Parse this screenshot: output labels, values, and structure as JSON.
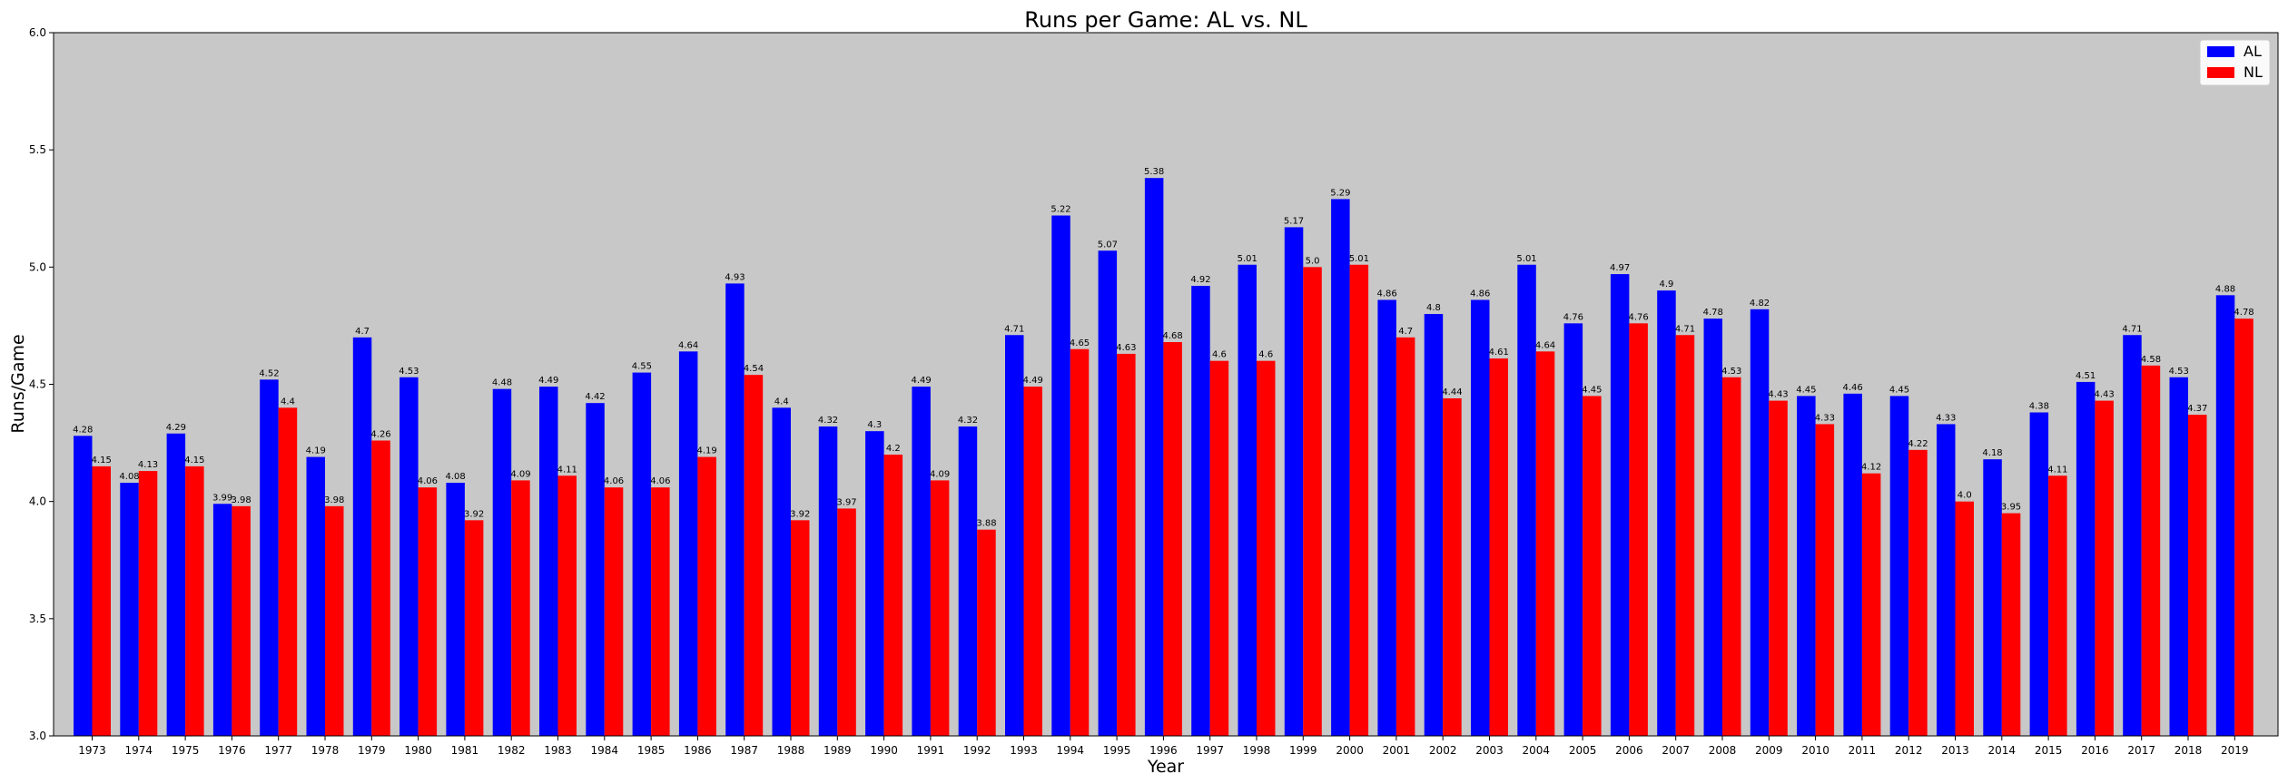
{
  "chart_data": {
    "type": "bar",
    "title": "Runs per Game: AL vs. NL",
    "xlabel": "Year",
    "ylabel": "Runs/Game",
    "ylim": [
      3.0,
      6.0
    ],
    "yticks": [
      "3.0",
      "3.5",
      "4.0",
      "4.5",
      "5.0",
      "5.5",
      "6.0"
    ],
    "grid": false,
    "legend_position": "top-right",
    "background_color": "#c8c8c8",
    "categories": [
      "1973",
      "1974",
      "1975",
      "1976",
      "1977",
      "1978",
      "1979",
      "1980",
      "1981",
      "1982",
      "1983",
      "1984",
      "1985",
      "1986",
      "1987",
      "1988",
      "1989",
      "1990",
      "1991",
      "1992",
      "1993",
      "1994",
      "1995",
      "1996",
      "1997",
      "1998",
      "1999",
      "2000",
      "2001",
      "2002",
      "2003",
      "2004",
      "2005",
      "2006",
      "2007",
      "2008",
      "2009",
      "2010",
      "2011",
      "2012",
      "2013",
      "2014",
      "2015",
      "2016",
      "2017",
      "2018",
      "2019"
    ],
    "series": [
      {
        "name": "AL",
        "color": "#0000ff",
        "values": [
          4.28,
          4.08,
          4.29,
          3.99,
          4.52,
          4.19,
          4.7,
          4.53,
          4.08,
          4.48,
          4.49,
          4.42,
          4.55,
          4.64,
          4.93,
          4.4,
          4.32,
          4.3,
          4.49,
          4.32,
          4.71,
          5.22,
          5.07,
          5.38,
          4.92,
          5.01,
          5.17,
          5.29,
          4.86,
          4.8,
          4.86,
          5.01,
          4.76,
          4.97,
          4.9,
          4.78,
          4.82,
          4.45,
          4.46,
          4.45,
          4.33,
          4.18,
          4.38,
          4.51,
          4.71,
          4.53,
          4.88
        ],
        "labels": [
          "4.28",
          "4.08",
          "4.29",
          "3.99",
          "4.52",
          "4.19",
          "4.7",
          "4.53",
          "4.08",
          "4.48",
          "4.49",
          "4.42",
          "4.55",
          "4.64",
          "4.93",
          "4.4",
          "4.32",
          "4.3",
          "4.49",
          "4.32",
          "4.71",
          "5.22",
          "5.07",
          "5.38",
          "4.92",
          "5.01",
          "5.17",
          "5.29",
          "4.86",
          "4.8",
          "4.86",
          "5.01",
          "4.76",
          "4.97",
          "4.9",
          "4.78",
          "4.82",
          "4.45",
          "4.46",
          "4.45",
          "4.33",
          "4.18",
          "4.38",
          "4.51",
          "4.71",
          "4.53",
          "4.88"
        ]
      },
      {
        "name": "NL",
        "color": "#ff0000",
        "values": [
          4.15,
          4.13,
          4.15,
          3.98,
          4.4,
          3.98,
          4.26,
          4.06,
          3.92,
          4.09,
          4.11,
          4.06,
          4.06,
          4.19,
          4.54,
          3.92,
          3.97,
          4.2,
          4.09,
          3.88,
          4.49,
          4.65,
          4.63,
          4.68,
          4.6,
          4.6,
          5.0,
          5.01,
          4.7,
          4.44,
          4.61,
          4.64,
          4.45,
          4.76,
          4.71,
          4.53,
          4.43,
          4.33,
          4.12,
          4.22,
          4.0,
          3.95,
          4.11,
          4.43,
          4.58,
          4.37,
          4.78
        ],
        "labels": [
          "4.15",
          "4.13",
          "4.15",
          "3.98",
          "4.4",
          "3.98",
          "4.26",
          "4.06",
          "3.92",
          "4.09",
          "4.11",
          "4.06",
          "4.06",
          "4.19",
          "4.54",
          "3.92",
          "3.97",
          "4.2",
          "4.09",
          "3.88",
          "4.49",
          "4.65",
          "4.63",
          "4.68",
          "4.6",
          "4.6",
          "5.0",
          "5.01",
          "4.7",
          "4.44",
          "4.61",
          "4.64",
          "4.45",
          "4.76",
          "4.71",
          "4.53",
          "4.43",
          "4.33",
          "4.12",
          "4.22",
          "4.0",
          "3.95",
          "4.11",
          "4.43",
          "4.58",
          "4.37",
          "4.78"
        ]
      }
    ]
  }
}
